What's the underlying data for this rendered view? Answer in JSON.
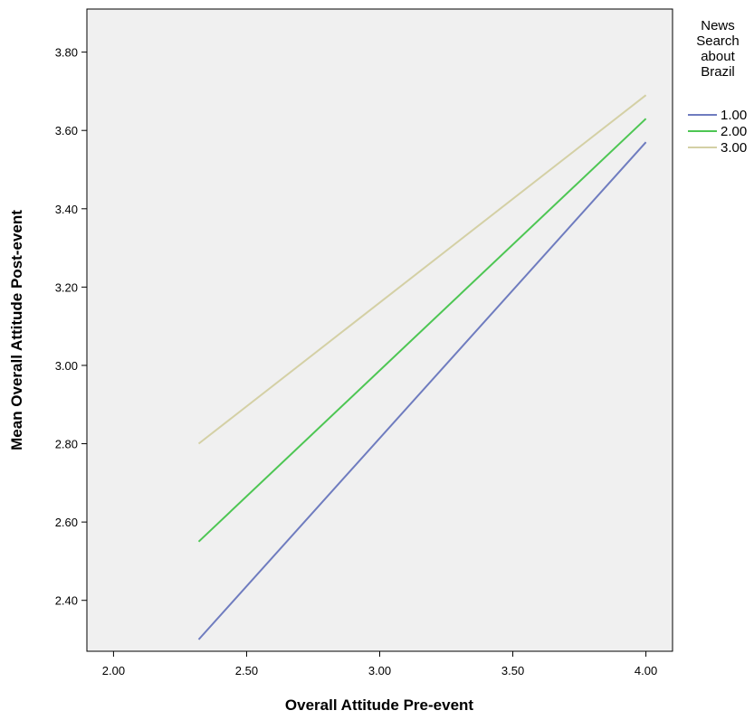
{
  "chart_data": {
    "type": "line",
    "xlabel": "Overall Attitude Pre-event",
    "ylabel": "Mean Overall Attitude Post-event",
    "xlim": [
      1.9,
      4.1
    ],
    "ylim": [
      2.27,
      3.91
    ],
    "x_ticks": [
      2.0,
      2.5,
      3.0,
      3.5,
      4.0
    ],
    "x_tick_labels": [
      "2.00",
      "2.50",
      "3.00",
      "3.50",
      "4.00"
    ],
    "y_ticks": [
      2.4,
      2.6,
      2.8,
      3.0,
      3.2,
      3.4,
      3.6,
      3.8
    ],
    "y_tick_labels": [
      "2.40",
      "2.60",
      "2.80",
      "3.00",
      "3.20",
      "3.40",
      "3.60",
      "3.80"
    ],
    "grid": false,
    "legend_position": "right",
    "legend_title": [
      "News",
      "Search",
      "about",
      "Brazil"
    ],
    "series": [
      {
        "name": "1.00",
        "color": "#6f7cbf",
        "x": [
          2.32,
          4.0
        ],
        "y": [
          2.3,
          3.57
        ]
      },
      {
        "name": "2.00",
        "color": "#4dc653",
        "x": [
          2.32,
          4.0
        ],
        "y": [
          2.55,
          3.63
        ]
      },
      {
        "name": "3.00",
        "color": "#d4d0a5",
        "x": [
          2.32,
          4.0
        ],
        "y": [
          2.8,
          3.69
        ]
      }
    ]
  }
}
